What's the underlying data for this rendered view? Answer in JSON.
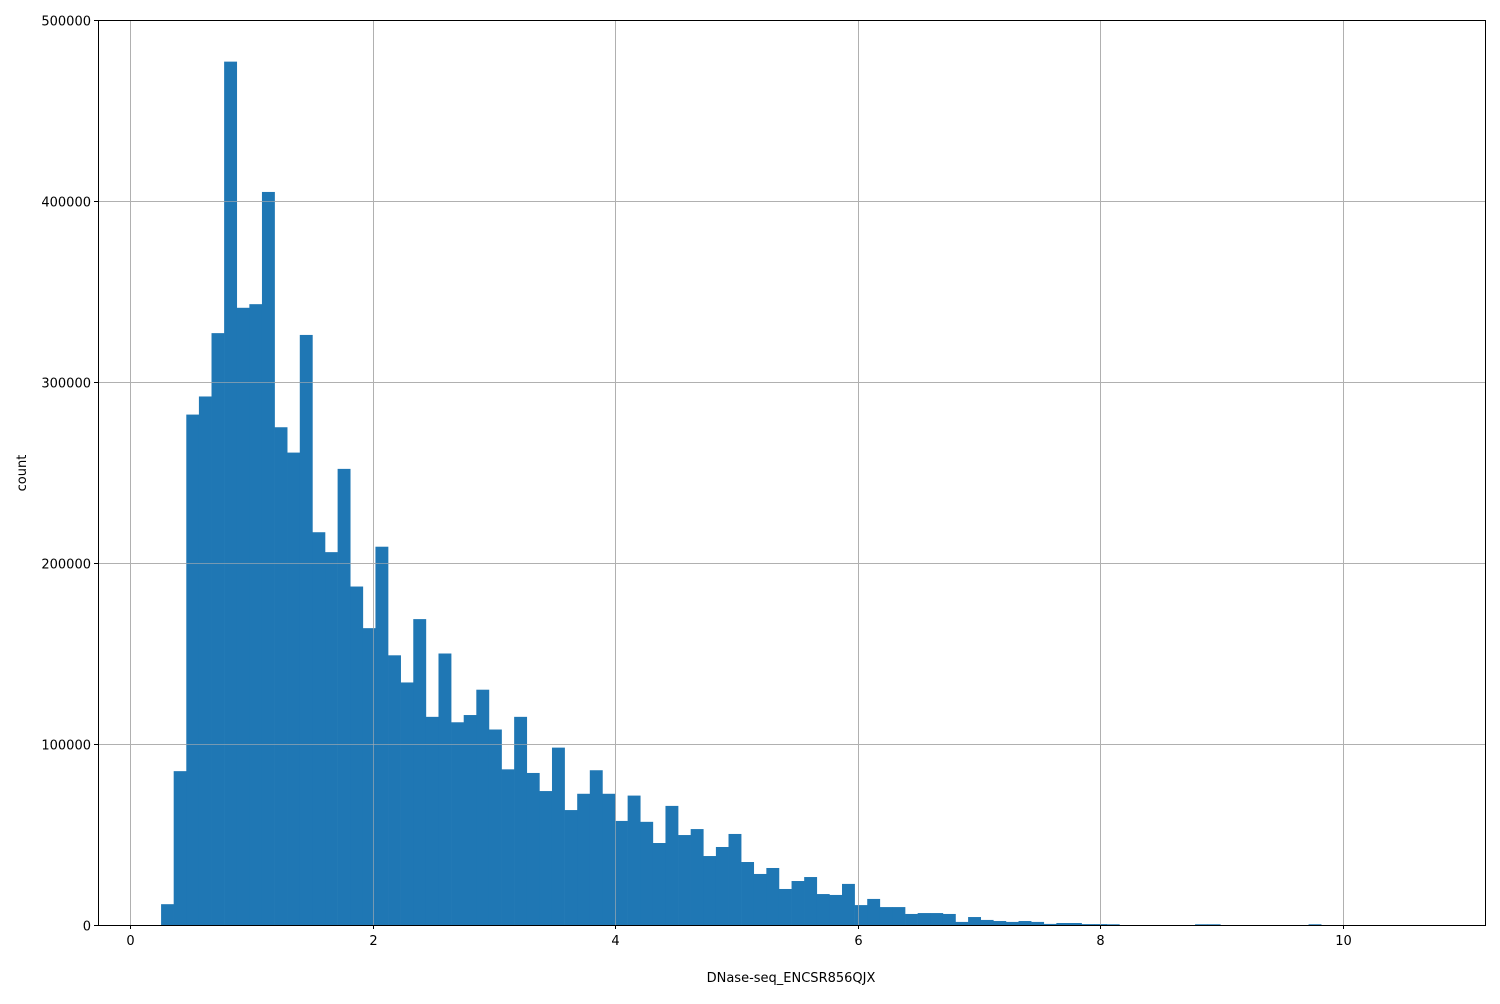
{
  "chart_data": {
    "type": "bar",
    "subtype": "histogram",
    "xlabel": "DNase-seq_ENCSR856QJX",
    "ylabel": "count",
    "xlim": [
      -0.264,
      11.17
    ],
    "ylim": [
      0,
      500000
    ],
    "grid": true,
    "bar_color": "#1f77b4",
    "bin_start": 0.256,
    "bin_width": 0.10395,
    "x_ticks": [
      "0",
      "2",
      "4",
      "6",
      "8",
      "10"
    ],
    "x_tick_values": [
      0,
      2,
      4,
      6,
      8,
      10
    ],
    "y_ticks": [
      "0",
      "100000",
      "200000",
      "300000",
      "400000",
      "500000"
    ],
    "y_tick_values": [
      0,
      100000,
      200000,
      300000,
      400000,
      500000
    ],
    "counts": [
      11500,
      85000,
      282000,
      292000,
      327000,
      477000,
      341000,
      343000,
      405000,
      275000,
      261000,
      326000,
      217000,
      206000,
      252000,
      187000,
      164000,
      209000,
      149000,
      134000,
      169000,
      115000,
      150000,
      112000,
      116000,
      130000,
      108000,
      86000,
      115000,
      84000,
      74000,
      98000,
      63500,
      72500,
      85500,
      72500,
      57500,
      71500,
      57000,
      45300,
      65800,
      49700,
      53000,
      38100,
      43100,
      50300,
      34800,
      28200,
      31500,
      19900,
      24300,
      26500,
      17100,
      16600,
      22700,
      11000,
      14400,
      9900,
      9900,
      6100,
      6600,
      6600,
      6100,
      1700,
      4400,
      2800,
      2200,
      1700,
      2200,
      1700,
      600,
      1100,
      1100,
      500,
      500,
      400,
      0,
      0,
      0,
      0,
      0,
      0,
      400,
      400,
      0,
      0,
      0,
      0,
      0,
      0,
      0,
      400,
      0,
      0,
      0,
      0,
      0,
      0,
      0,
      5
    ]
  }
}
